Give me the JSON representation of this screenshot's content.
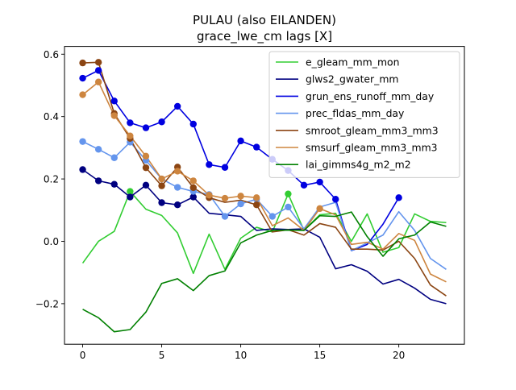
{
  "chart_data": {
    "type": "line",
    "title": "PULAU (also EILANDEN)",
    "subtitle": "grace_lwe_cm lags [X]",
    "xlabel": "",
    "ylabel": "",
    "xlim": [
      -1.15,
      24.15
    ],
    "ylim": [
      -0.33,
      0.625
    ],
    "x_ticks": [
      0,
      5,
      10,
      15,
      20
    ],
    "y_ticks": [
      -0.2,
      0.0,
      0.2,
      0.4,
      0.6
    ],
    "y_tick_labels": [
      "−0.2",
      "0.0",
      "0.2",
      "0.4",
      "0.6"
    ],
    "grid": false,
    "legend_position": "top-right",
    "x": [
      0,
      1,
      2,
      3,
      4,
      5,
      6,
      7,
      8,
      9,
      10,
      11,
      12,
      13,
      14,
      15,
      16,
      17,
      18,
      19,
      20,
      21,
      22,
      23
    ],
    "series": [
      {
        "name": "e_gleam_mm_mon",
        "color": "#32cd32",
        "values": [
          -0.07,
          0.0,
          0.032,
          0.16,
          0.103,
          0.083,
          0.027,
          -0.103,
          0.023,
          -0.09,
          0.01,
          0.045,
          0.03,
          0.152,
          0.035,
          0.085,
          0.09,
          0.0,
          0.088,
          -0.035,
          -0.02,
          0.088,
          0.064,
          0.06
        ],
        "markers": [
          3,
          13
        ]
      },
      {
        "name": "glws2_gwater_mm",
        "color": "#000080",
        "values": [
          0.23,
          0.194,
          0.183,
          0.142,
          0.18,
          0.124,
          0.117,
          0.142,
          0.09,
          0.085,
          0.08,
          0.035,
          0.04,
          0.038,
          0.04,
          0.013,
          -0.088,
          -0.075,
          -0.096,
          -0.137,
          -0.122,
          -0.15,
          -0.186,
          -0.2
        ],
        "markers": [
          0,
          1,
          2,
          3,
          4,
          5,
          6,
          7
        ]
      },
      {
        "name": "grun_ens_runoff_mm_day",
        "color": "#0000e0",
        "values": [
          0.523,
          0.548,
          0.45,
          0.38,
          0.364,
          0.383,
          0.433,
          0.376,
          0.246,
          0.237,
          0.322,
          0.302,
          0.263,
          0.227,
          0.18,
          0.19,
          0.135,
          -0.03,
          -0.01,
          0.055,
          0.14,
          null,
          null,
          null
        ],
        "markers": [
          0,
          1,
          2,
          3,
          4,
          5,
          6,
          7,
          8,
          9,
          10,
          11,
          12,
          13,
          14,
          15,
          16,
          20
        ]
      },
      {
        "name": "prec_fldas_mm_day",
        "color": "#6495ed",
        "values": [
          0.32,
          0.295,
          0.268,
          0.318,
          0.26,
          0.2,
          0.173,
          0.16,
          0.15,
          0.08,
          0.12,
          0.135,
          0.08,
          0.11,
          0.04,
          0.11,
          0.125,
          -0.03,
          -0.005,
          0.02,
          0.095,
          0.035,
          -0.055,
          -0.09
        ],
        "markers": [
          0,
          1,
          2,
          3,
          4,
          5,
          6,
          7,
          8,
          9,
          10,
          11,
          12,
          13
        ]
      },
      {
        "name": "smroot_gleam_mm3_mm3",
        "color": "#8b4513",
        "values": [
          0.572,
          0.574,
          0.41,
          0.33,
          0.236,
          0.178,
          0.238,
          0.172,
          0.14,
          0.125,
          0.132,
          0.117,
          0.03,
          0.037,
          0.02,
          0.057,
          0.045,
          -0.025,
          -0.025,
          -0.028,
          0.0,
          -0.055,
          -0.14,
          -0.175
        ],
        "markers": [
          0,
          1,
          2,
          3,
          4,
          5,
          6,
          7,
          8,
          11
        ]
      },
      {
        "name": "smsurf_gleam_mm3_mm3",
        "color": "#cd853f",
        "values": [
          0.47,
          0.511,
          0.403,
          0.338,
          0.273,
          0.2,
          0.225,
          0.194,
          0.148,
          0.138,
          0.145,
          0.14,
          0.05,
          0.075,
          0.035,
          0.105,
          0.085,
          -0.01,
          -0.003,
          -0.025,
          0.025,
          0.003,
          -0.105,
          -0.13
        ],
        "markers": [
          0,
          1,
          2,
          3,
          4,
          5,
          6,
          7,
          8,
          9,
          10,
          11,
          15
        ]
      },
      {
        "name": "lai_gimms4g_m2_m2",
        "color": "#008000",
        "values": [
          -0.218,
          -0.245,
          -0.29,
          -0.283,
          -0.227,
          -0.135,
          -0.12,
          -0.158,
          -0.11,
          -0.095,
          -0.005,
          0.02,
          0.035,
          0.036,
          0.035,
          0.082,
          0.08,
          0.094,
          0.015,
          -0.048,
          0.008,
          0.02,
          0.062,
          0.048
        ],
        "markers": []
      }
    ]
  }
}
